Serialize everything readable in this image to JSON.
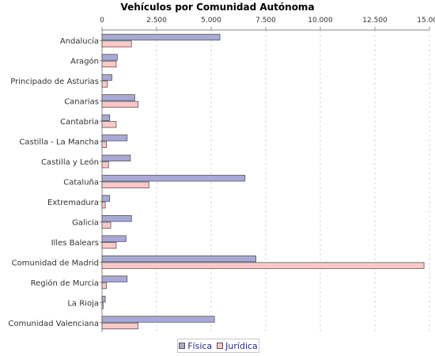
{
  "chart_data": {
    "type": "bar",
    "orientation": "horizontal",
    "title": "Vehículos por Comunidad Autónoma",
    "xlabel": "",
    "ylabel": "",
    "xlim": [
      0,
      15000
    ],
    "x_ticks": [
      "0",
      "2.500",
      "5.000",
      "7.500",
      "10.000",
      "12.500",
      "15.000"
    ],
    "x_tick_values": [
      0,
      2500,
      5000,
      7500,
      10000,
      12500,
      15000
    ],
    "x_axis_position": "top",
    "grid": true,
    "legend_position": "bottom",
    "categories": [
      "Andalucía",
      "Aragón",
      "Principado de Asturias",
      "Canarias",
      "Cantabria",
      "Castilla - La Mancha",
      "Castilla y León",
      "Cataluña",
      "Extremadura",
      "Galicia",
      "Illes Balears",
      "Comunidad de Madrid",
      "Región de Murcia",
      "La Rioja",
      "Comunidad Valenciana"
    ],
    "series": [
      {
        "name": "Física",
        "color": "#a9a9d6",
        "values": [
          5400,
          700,
          450,
          1500,
          350,
          1150,
          1300,
          6550,
          350,
          1350,
          1100,
          7050,
          1150,
          150,
          5150
        ]
      },
      {
        "name": "Jurídica",
        "color": "#ffc8c8",
        "values": [
          1350,
          650,
          250,
          1650,
          650,
          200,
          300,
          2150,
          150,
          400,
          650,
          14750,
          200,
          50,
          1650
        ]
      }
    ]
  },
  "colors": {
    "bar_border": "#555555",
    "grid": "#d8d8d8",
    "axis": "#888888"
  }
}
